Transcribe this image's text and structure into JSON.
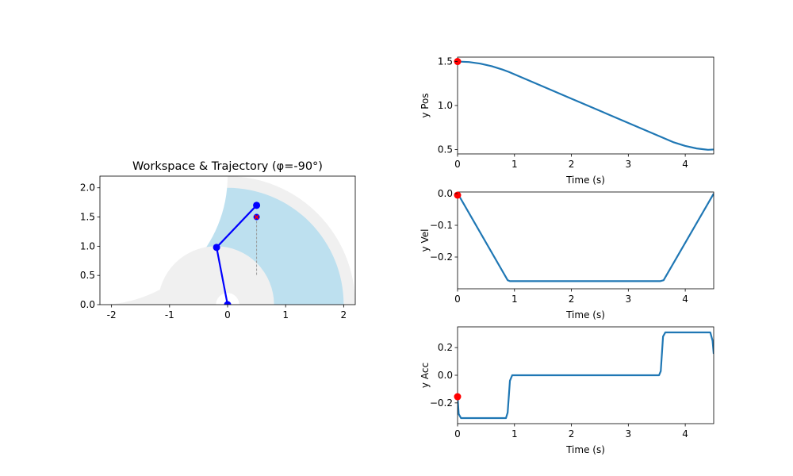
{
  "colors": {
    "workspace_outer": "#f0f0f0",
    "workspace_inner": "#bde0ef",
    "arm": "#0000ff",
    "target": "#ff0000",
    "path": "#999999",
    "line": "#1f77b4",
    "frame": "#000000"
  },
  "chart_data": [
    {
      "type": "workspace",
      "title": "Workspace & Trajectory (φ=-90°)",
      "xlim": [
        -2.2,
        2.2
      ],
      "ylim": [
        0,
        2.2
      ],
      "xticks": [
        -2,
        -1,
        0,
        1,
        2
      ],
      "yticks": [
        0.0,
        0.5,
        1.0,
        1.5,
        2.0
      ],
      "ytick_labels": [
        "0.0",
        "0.5",
        "1.0",
        "1.5",
        "2.0"
      ],
      "xtick_labels": [
        "-2",
        "-1",
        "0",
        "1",
        "2"
      ],
      "outer_reach_radius": 2.2,
      "reachable_outer_radius": 2.0,
      "reachable_inner_circle": {
        "cx": -0.2,
        "cy": 0,
        "r": 1.0
      },
      "base_hole_radius": 0.2,
      "arm_joints": [
        [
          0.0,
          0.0
        ],
        [
          -0.19,
          0.98
        ],
        [
          0.5,
          1.7
        ]
      ],
      "end_effector_target": [
        0.5,
        1.5
      ],
      "trajectory": {
        "x": [
          0.5,
          0.5
        ],
        "y": [
          1.5,
          0.5
        ]
      }
    },
    {
      "type": "line",
      "xlabel": "Time (s)",
      "ylabel": "y Pos",
      "xlim": [
        0,
        4.5
      ],
      "ylim": [
        0.45,
        1.55
      ],
      "xticks": [
        0,
        1,
        2,
        3,
        4
      ],
      "yticks": [
        0.5,
        1.0,
        1.5
      ],
      "ytick_labels": [
        "0.5",
        "1.0",
        "1.5"
      ],
      "x": [
        0,
        0.2,
        0.4,
        0.6,
        0.8,
        0.9,
        1.5,
        2.0,
        2.5,
        3.0,
        3.58,
        3.8,
        4.0,
        4.2,
        4.4,
        4.5
      ],
      "values": [
        1.5,
        1.494,
        1.476,
        1.447,
        1.406,
        1.382,
        1.216,
        1.078,
        0.94,
        0.802,
        0.642,
        0.581,
        0.541,
        0.512,
        0.497,
        0.5
      ],
      "marker": {
        "x": 0,
        "y": 1.5
      }
    },
    {
      "type": "line",
      "xlabel": "Time (s)",
      "ylabel": "y Vel",
      "xlim": [
        0,
        4.5
      ],
      "ylim": [
        -0.3,
        0.005
      ],
      "xticks": [
        0,
        1,
        2,
        3,
        4
      ],
      "yticks": [
        0.0,
        -0.1,
        -0.2
      ],
      "ytick_labels": [
        "0.0",
        "−0.1",
        "−0.2"
      ],
      "x": [
        0,
        0.02,
        0.88,
        0.92,
        3.56,
        3.62,
        4.5
      ],
      "values": [
        0,
        -0.005,
        -0.273,
        -0.276,
        -0.276,
        -0.273,
        0
      ],
      "marker": {
        "x": 0,
        "y": -0.005
      }
    },
    {
      "type": "line",
      "xlabel": "Time (s)",
      "ylabel": "y Acc",
      "xlim": [
        0,
        4.5
      ],
      "ylim": [
        -0.35,
        0.35
      ],
      "xticks": [
        0,
        1,
        2,
        3,
        4
      ],
      "yticks": [
        0.2,
        0.0,
        -0.2
      ],
      "ytick_labels": [
        "0.2",
        "0.0",
        "−0.2"
      ],
      "x": [
        0,
        0.02,
        0.06,
        0.85,
        0.88,
        0.92,
        0.96,
        3.54,
        3.57,
        3.61,
        3.65,
        4.44,
        4.48,
        4.5
      ],
      "values": [
        -0.155,
        -0.28,
        -0.31,
        -0.31,
        -0.27,
        -0.04,
        0,
        0,
        0.03,
        0.28,
        0.31,
        0.31,
        0.25,
        0.155
      ],
      "marker": {
        "x": 0,
        "y": -0.155
      }
    }
  ]
}
